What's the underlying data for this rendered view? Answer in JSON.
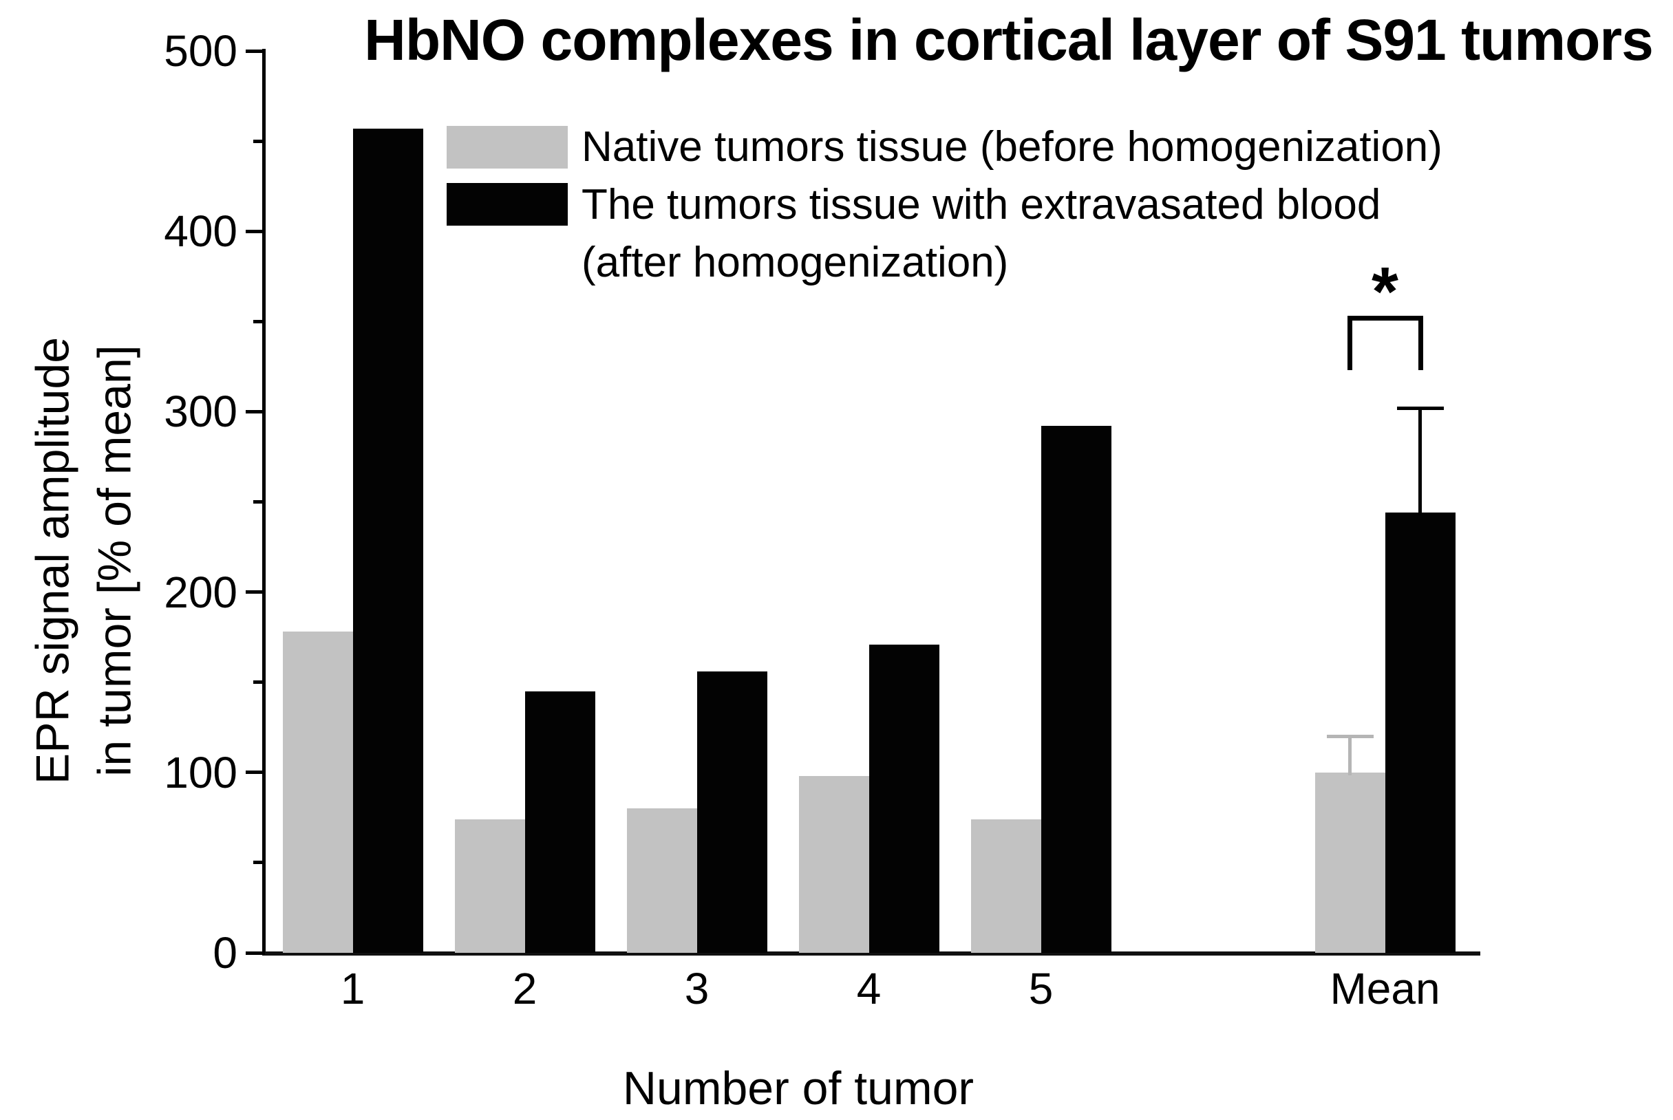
{
  "title": "HbNO complexes in cortical layer of S91 tumors",
  "y_axis": {
    "label_line1": "EPR signal amplitude",
    "label_line2": "in tumor [% of mean]",
    "min": 0,
    "max": 500,
    "major_step": 100,
    "minor_step": 50,
    "tick_labels": [
      "0",
      "100",
      "200",
      "300",
      "400",
      "500"
    ]
  },
  "x_axis": {
    "label": "Number of tumor",
    "categories": [
      "1",
      "2",
      "3",
      "4",
      "5",
      "Mean"
    ]
  },
  "legend": [
    {
      "color": "#c2c2c2",
      "label": "Native tumors tissue (before homogenization)"
    },
    {
      "color": "#030303",
      "label": "The tumors tissue with extravasated blood",
      "label_line2": "(after homogenization)"
    }
  ],
  "significance": {
    "label": "*",
    "category": "Mean"
  },
  "chart_data": {
    "type": "bar",
    "title": "HbNO complexes in cortical layer of S91 tumors",
    "xlabel": "Number of tumor",
    "ylabel": "EPR signal amplitude in tumor [% of mean]",
    "ylim": [
      0,
      500
    ],
    "grid": false,
    "legend_position": "top-left-inside",
    "categories": [
      "1",
      "2",
      "3",
      "4",
      "5",
      "Mean"
    ],
    "series": [
      {
        "name": "Native tumors tissue (before homogenization)",
        "color": "#c2c2c2",
        "values": [
          178,
          74,
          80,
          98,
          74,
          100
        ],
        "error_plus": [
          null,
          null,
          null,
          null,
          null,
          20
        ],
        "error_color": "#b5b5b5"
      },
      {
        "name": "The tumors tissue with extravasated blood (after homogenization)",
        "color": "#030303",
        "values": [
          457,
          145,
          156,
          171,
          292,
          244
        ],
        "error_plus": [
          null,
          null,
          null,
          null,
          null,
          58
        ],
        "error_color": "#000000"
      }
    ],
    "annotations": [
      {
        "type": "significance-bracket",
        "category": "Mean",
        "label": "*",
        "y_value": 353,
        "leg_drop_value": 30
      }
    ]
  }
}
